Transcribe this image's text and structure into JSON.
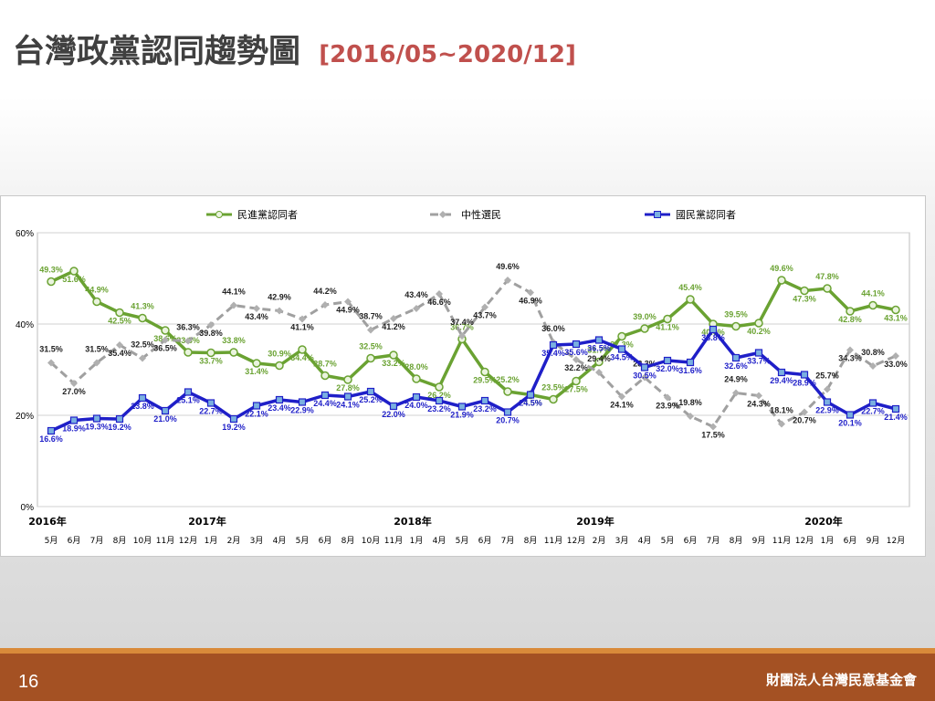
{
  "slide": {
    "title": "台灣政黨認同趨勢圖",
    "date_range": "[2016/05~2020/12]",
    "page_number": "16",
    "organization": "財團法人台灣民意基金會"
  },
  "colors": {
    "dpp": "#6aa232",
    "neutral": "#a0a0a0",
    "kmt": "#1f1fc8",
    "footer": "#a45123",
    "date_range": "#c0504d"
  },
  "chart_data": {
    "type": "line",
    "title": "",
    "xlabel": "",
    "ylabel": "",
    "ylim": [
      0,
      60
    ],
    "yticks": [
      "0%",
      "20%",
      "40%",
      "60%"
    ],
    "grid": "horizontal",
    "legend_position": "top",
    "categories": [
      "5月",
      "6月",
      "7月",
      "8月",
      "10月",
      "11月",
      "12月",
      "1月",
      "2月",
      "3月",
      "4月",
      "5月",
      "6月",
      "8月",
      "10月",
      "11月",
      "1月",
      "4月",
      "5月",
      "6月",
      "7月",
      "8月",
      "11月",
      "12月",
      "2月",
      "3月",
      "4月",
      "5月",
      "6月",
      "7月",
      "8月",
      "9月",
      "11月",
      "12月",
      "1月",
      "6月",
      "9月",
      "12月"
    ],
    "year_labels": [
      {
        "label": "2016年",
        "index": 0
      },
      {
        "label": "2017年",
        "index": 7
      },
      {
        "label": "2018年",
        "index": 16
      },
      {
        "label": "2019年",
        "index": 24
      },
      {
        "label": "2020年",
        "index": 34
      }
    ],
    "series": [
      {
        "name": "民進黨認同者",
        "key": "dpp",
        "values": [
          49.3,
          51.6,
          44.9,
          42.5,
          41.3,
          38.6,
          33.8,
          33.7,
          33.8,
          31.4,
          30.9,
          34.4,
          28.7,
          27.8,
          32.5,
          33.2,
          28.0,
          26.2,
          36.7,
          29.5,
          25.2,
          24.5,
          23.5,
          27.5,
          31.7,
          37.3,
          39.0,
          41.1,
          45.4,
          40.0,
          39.5,
          40.2,
          49.6,
          47.3,
          47.8,
          42.8,
          44.1,
          43.1
        ]
      },
      {
        "name": "中性選民",
        "key": "neutral",
        "values": [
          31.5,
          27.0,
          31.5,
          35.4,
          32.5,
          36.5,
          36.3,
          39.8,
          44.1,
          43.4,
          42.9,
          41.1,
          44.2,
          44.9,
          38.7,
          41.2,
          43.4,
          46.6,
          37.4,
          43.7,
          49.6,
          46.9,
          36.0,
          32.2,
          29.4,
          24.1,
          28.3,
          23.9,
          19.8,
          17.5,
          24.9,
          24.3,
          18.1,
          20.7,
          25.7,
          34.3,
          30.8,
          33.0
        ]
      },
      {
        "name": "國民黨認同者",
        "key": "kmt",
        "values": [
          16.6,
          18.9,
          19.3,
          19.2,
          23.8,
          21.0,
          25.1,
          22.7,
          19.2,
          22.1,
          23.4,
          22.9,
          24.4,
          24.1,
          25.2,
          22.0,
          24.0,
          23.2,
          21.9,
          23.2,
          20.7,
          24.5,
          35.4,
          35.6,
          36.5,
          34.5,
          30.5,
          32.0,
          31.6,
          38.8,
          32.6,
          33.7,
          29.4,
          28.9,
          22.9,
          20.1,
          22.7,
          21.4
        ]
      }
    ]
  }
}
